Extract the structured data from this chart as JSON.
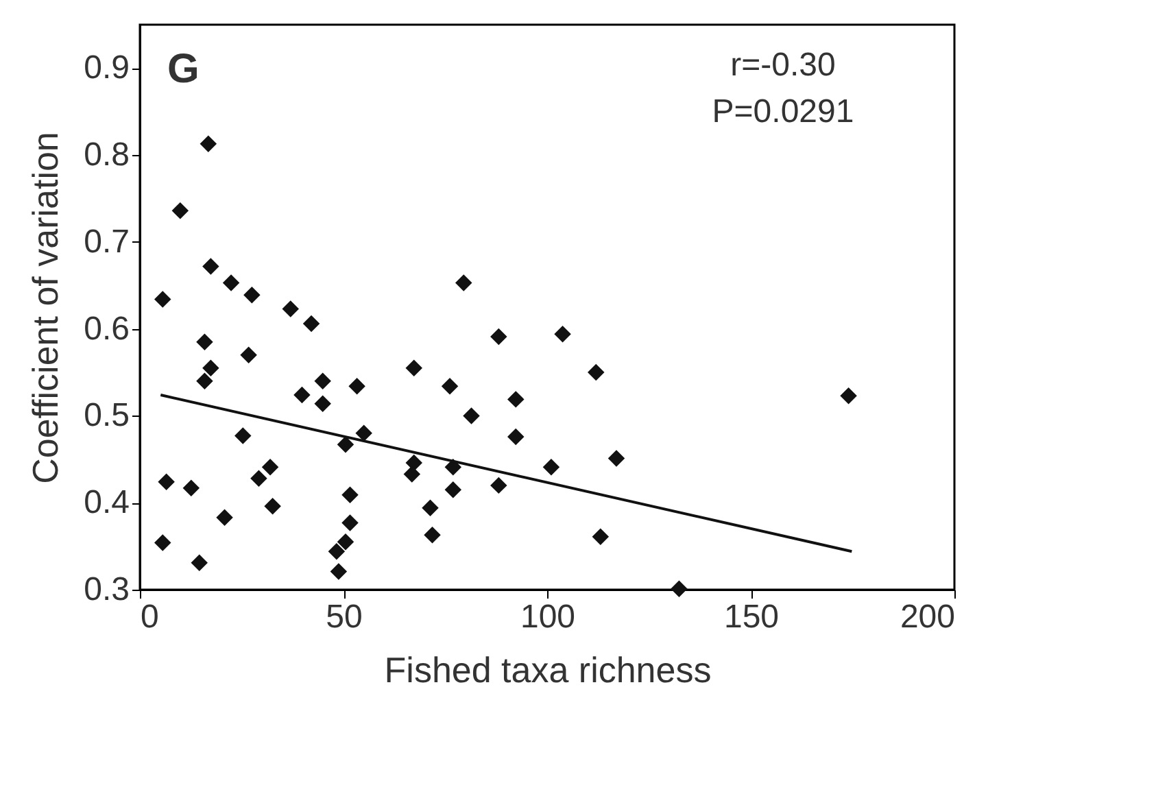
{
  "chart_data": {
    "type": "scatter",
    "xlabel": "Fished taxa richness",
    "ylabel": "Coefficient of variation",
    "annotations": [
      "G",
      "r=-0.30",
      "P=0.0291"
    ],
    "xlim": [
      0,
      200
    ],
    "ylim": [
      0.3,
      0.95
    ],
    "xticks": [
      0,
      50,
      100,
      150,
      200
    ],
    "yticks": [
      0.3,
      0.4,
      0.5,
      0.6,
      0.7,
      0.8,
      0.9
    ],
    "grid": false,
    "marker": "diamond",
    "series": [
      {
        "color": "#111111",
        "x": [
          16.8,
          9.9,
          17.4,
          22.4,
          27.5,
          5.6,
          37.0,
          42.1,
          79.5,
          15.9,
          26.7,
          88.1,
          103.8,
          17.4,
          15.9,
          44.9,
          53.3,
          67.3,
          76.1,
          39.8,
          44.9,
          92.3,
          81.4,
          55.0,
          50.5,
          92.3,
          25.3,
          32.0,
          29.2,
          67.3,
          66.8,
          76.9,
          101.0,
          6.5,
          12.6,
          88.1,
          76.9,
          20.8,
          32.6,
          51.6,
          71.3,
          51.6,
          71.8,
          5.6,
          50.5,
          48.3,
          14.6,
          48.8,
          112.0,
          117.0,
          174.0,
          113.1,
          132.4
        ],
        "values": [
          0.813,
          0.736,
          0.672,
          0.653,
          0.639,
          0.634,
          0.623,
          0.606,
          0.653,
          0.585,
          0.57,
          0.591,
          0.594,
          0.555,
          0.54,
          0.54,
          0.534,
          0.555,
          0.534,
          0.524,
          0.514,
          0.519,
          0.5,
          0.48,
          0.467,
          0.476,
          0.477,
          0.441,
          0.428,
          0.446,
          0.433,
          0.441,
          0.441,
          0.424,
          0.417,
          0.42,
          0.415,
          0.383,
          0.396,
          0.409,
          0.394,
          0.377,
          0.363,
          0.354,
          0.355,
          0.344,
          0.331,
          0.321,
          0.55,
          0.451,
          0.523,
          0.361,
          0.301
        ]
      },
      {
        "type": "line",
        "color": "#111111",
        "line_style": "solid",
        "marker": "none",
        "x": [
          5.1,
          174.8
        ],
        "values": [
          0.524,
          0.344
        ]
      }
    ]
  }
}
